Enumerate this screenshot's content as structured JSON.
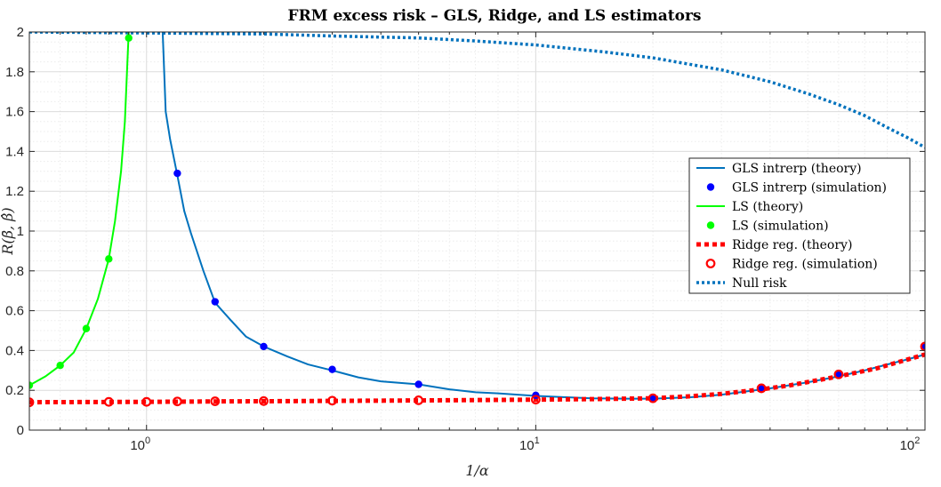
{
  "chart_data": {
    "type": "line",
    "title": "FRM excess risk – GLS, Ridge, and LS estimators",
    "xlabel": "1/α",
    "ylabel": "R(β̄, β̂)",
    "xscale": "log",
    "xlim": [
      0.5,
      100
    ],
    "ylim": [
      0,
      2
    ],
    "grid": true,
    "legend_position": "right",
    "x_ticks": [
      {
        "value": 1,
        "base": "10",
        "exp": "0"
      },
      {
        "value": 10,
        "base": "10",
        "exp": "1"
      },
      {
        "value": 100,
        "base": "10",
        "exp": "2"
      }
    ],
    "y_ticks": [
      "0",
      "0.2",
      "0.4",
      "0.6",
      "0.8",
      "1",
      "1.2",
      "1.4",
      "1.6",
      "1.8",
      "2"
    ],
    "series": [
      {
        "name": "GLS intrerp (theory)",
        "style": "line",
        "color": "#0072BD",
        "x": [
          1.1,
          1.12,
          1.15,
          1.2,
          1.25,
          1.3,
          1.4,
          1.5,
          1.65,
          1.8,
          2,
          2.3,
          2.6,
          3,
          3.5,
          4,
          5,
          6,
          7,
          8,
          10,
          12,
          14,
          17,
          20,
          25,
          30,
          35,
          40,
          50,
          60,
          70,
          80,
          90,
          100
        ],
        "y": [
          2.0,
          1.6,
          1.46,
          1.28,
          1.1,
          0.99,
          0.8,
          0.64,
          0.55,
          0.47,
          0.42,
          0.37,
          0.33,
          0.3,
          0.265,
          0.245,
          0.23,
          0.205,
          0.19,
          0.185,
          0.172,
          0.165,
          0.16,
          0.158,
          0.158,
          0.165,
          0.178,
          0.195,
          0.21,
          0.24,
          0.27,
          0.3,
          0.33,
          0.355,
          0.38
        ]
      },
      {
        "name": "GLS intrerp (simulation)",
        "style": "dot",
        "color": "#0000FF",
        "x": [
          1.2,
          1.5,
          2,
          3,
          5,
          10,
          20,
          38,
          60,
          100
        ],
        "y": [
          1.29,
          0.645,
          0.42,
          0.305,
          0.23,
          0.175,
          0.16,
          0.21,
          0.28,
          0.42
        ]
      },
      {
        "name": "LS (theory)",
        "style": "line",
        "color": "#00FF00",
        "x": [
          0.5,
          0.55,
          0.6,
          0.65,
          0.7,
          0.75,
          0.8,
          0.83,
          0.86,
          0.88,
          0.9
        ],
        "y": [
          0.225,
          0.27,
          0.325,
          0.39,
          0.51,
          0.66,
          0.86,
          1.05,
          1.3,
          1.55,
          2.0
        ]
      },
      {
        "name": "LS (simulation)",
        "style": "dot",
        "color": "#00FF00",
        "x": [
          0.5,
          0.6,
          0.7,
          0.8,
          0.9
        ],
        "y": [
          0.225,
          0.325,
          0.51,
          0.86,
          1.97
        ]
      },
      {
        "name": "Ridge reg. (theory)",
        "style": "dotted-thick",
        "color": "#FF0000",
        "x": [
          0.5,
          0.7,
          1,
          1.5,
          2,
          3,
          5,
          7,
          10,
          14,
          20,
          25,
          30,
          38,
          45,
          60,
          75,
          100
        ],
        "y": [
          0.14,
          0.141,
          0.142,
          0.144,
          0.145,
          0.147,
          0.149,
          0.151,
          0.153,
          0.156,
          0.16,
          0.17,
          0.182,
          0.205,
          0.225,
          0.27,
          0.31,
          0.38
        ]
      },
      {
        "name": "Ridge reg. (simulation)",
        "style": "ring",
        "color": "#FF0000",
        "x": [
          0.5,
          0.8,
          1,
          1.2,
          1.5,
          2,
          3,
          5,
          10,
          20,
          38,
          60,
          100
        ],
        "y": [
          0.14,
          0.142,
          0.142,
          0.144,
          0.145,
          0.146,
          0.148,
          0.15,
          0.153,
          0.16,
          0.21,
          0.28,
          0.42
        ]
      },
      {
        "name": "Null risk",
        "style": "dotted",
        "color": "#0072BD",
        "x": [
          0.5,
          1,
          2,
          3,
          5,
          7,
          10,
          15,
          20,
          30,
          40,
          50,
          60,
          70,
          80,
          90,
          100
        ],
        "y": [
          2.0,
          1.995,
          1.99,
          1.98,
          1.97,
          1.955,
          1.935,
          1.9,
          1.87,
          1.81,
          1.75,
          1.69,
          1.635,
          1.58,
          1.52,
          1.47,
          1.42
        ]
      }
    ]
  }
}
